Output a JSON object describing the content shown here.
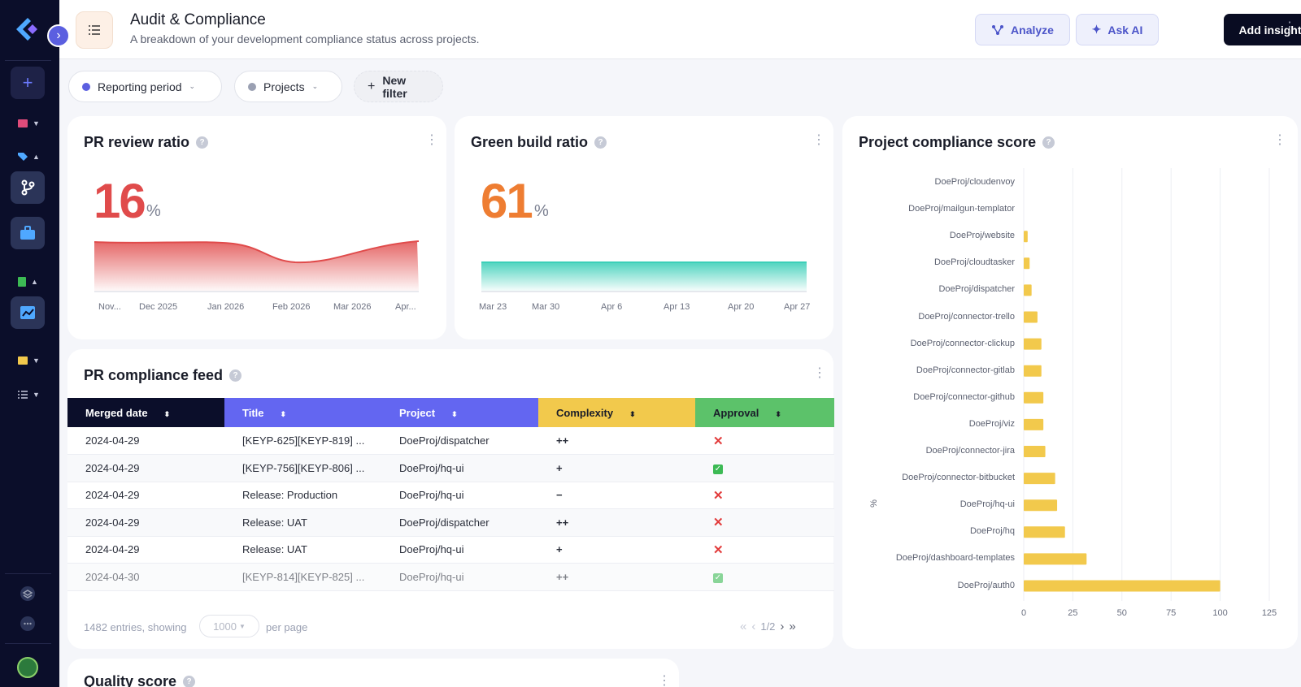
{
  "header": {
    "title": "Audit & Compliance",
    "subtitle": "A breakdown of your development compliance status across projects.",
    "analyze_label": "Analyze",
    "ask_ai_label": "Ask AI",
    "add_insight_label": "Add insight"
  },
  "filters": {
    "reporting_period": "Reporting period",
    "projects": "Projects",
    "new_filter": "New filter"
  },
  "pr_review": {
    "title": "PR review ratio",
    "value": "16",
    "unit": "%",
    "x_labels": [
      "Nov...",
      "Dec 2025",
      "Jan 2026",
      "Feb 2026",
      "Mar 2026",
      "Apr..."
    ],
    "color": "#e04b4b"
  },
  "green_build": {
    "title": "Green build ratio",
    "value": "61",
    "unit": "%",
    "x_labels": [
      "Mar 23",
      "Mar 30",
      "Apr 6",
      "Apr 13",
      "Apr 20",
      "Apr 27"
    ],
    "color": "#ee7d32"
  },
  "compliance": {
    "title": "Project compliance score",
    "y_unit": "%"
  },
  "feed": {
    "title": "PR compliance feed",
    "columns": [
      "Merged date",
      "Title",
      "Project",
      "Complexity",
      "Approval"
    ],
    "rows": [
      {
        "date": "2024-04-29",
        "title": "[KEYP-625][KEYP-819] ...",
        "project": "DoeProj/dispatcher",
        "complexity": "++",
        "approval": "✕"
      },
      {
        "date": "2024-04-29",
        "title": "[KEYP-756][KEYP-806] ...",
        "project": "DoeProj/hq-ui",
        "complexity": "+",
        "approval": "✓"
      },
      {
        "date": "2024-04-29",
        "title": "Release: Production",
        "project": "DoeProj/hq-ui",
        "complexity": "−",
        "approval": "✕"
      },
      {
        "date": "2024-04-29",
        "title": "Release: UAT",
        "project": "DoeProj/dispatcher",
        "complexity": "++",
        "approval": "✕"
      },
      {
        "date": "2024-04-29",
        "title": "Release: UAT",
        "project": "DoeProj/hq-ui",
        "complexity": "+",
        "approval": "✕"
      },
      {
        "date": "2024-04-30",
        "title": "[KEYP-814][KEYP-825] ...",
        "project": "DoeProj/hq-ui",
        "complexity": "++",
        "approval": "✓"
      }
    ],
    "entries_text": "1482 entries, showing",
    "per_page_value": "1000",
    "per_page_label": "per page",
    "page": "1/2"
  },
  "quality": {
    "title": "Quality score"
  },
  "chart_data": {
    "type": "bar",
    "orientation": "horizontal",
    "title": "Project compliance score",
    "ylabel": "%",
    "xlim": [
      0,
      125
    ],
    "xticks": [
      0,
      25,
      50,
      75,
      100,
      125
    ],
    "color": "#f2c94c",
    "categories": [
      "DoeProj/cloudenvoy",
      "DoeProj/mailgun-templator",
      "DoeProj/website",
      "DoeProj/cloudtasker",
      "DoeProj/dispatcher",
      "DoeProj/connector-trello",
      "DoeProj/connector-clickup",
      "DoeProj/connector-gitlab",
      "DoeProj/connector-github",
      "DoeProj/viz",
      "DoeProj/connector-jira",
      "DoeProj/connector-bitbucket",
      "DoeProj/hq-ui",
      "DoeProj/hq",
      "DoeProj/dashboard-templates",
      "DoeProj/auth0"
    ],
    "values": [
      0,
      0,
      2,
      3,
      4,
      7,
      9,
      9,
      10,
      10,
      11,
      16,
      17,
      21,
      32,
      100
    ]
  }
}
